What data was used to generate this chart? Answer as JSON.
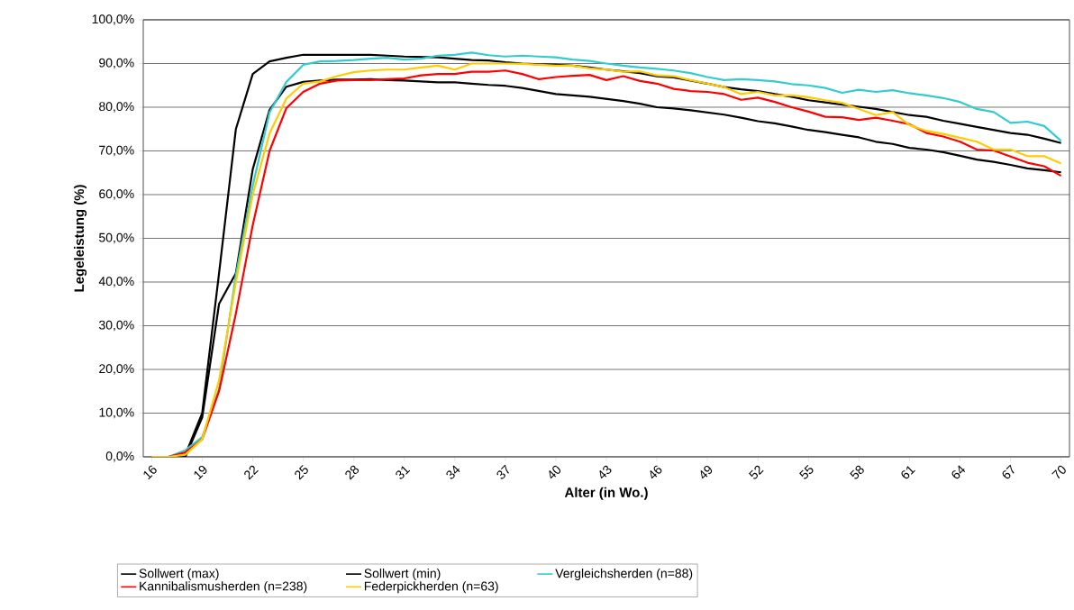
{
  "chart_data": {
    "type": "line",
    "xlabel": "Alter (in Wo.)",
    "ylabel": "Legeleistung (%)",
    "x": [
      16,
      17,
      18,
      19,
      20,
      21,
      22,
      23,
      24,
      25,
      26,
      27,
      28,
      29,
      30,
      31,
      32,
      33,
      34,
      35,
      36,
      37,
      38,
      39,
      40,
      41,
      42,
      43,
      44,
      45,
      46,
      47,
      48,
      49,
      50,
      51,
      52,
      53,
      54,
      55,
      56,
      57,
      58,
      59,
      60,
      61,
      62,
      63,
      64,
      65,
      66,
      67,
      68,
      69,
      70
    ],
    "xlim": [
      15.5,
      70.5
    ],
    "xticks": [
      16,
      19,
      22,
      25,
      28,
      31,
      34,
      37,
      40,
      43,
      46,
      49,
      52,
      55,
      58,
      61,
      64,
      67,
      70
    ],
    "ylim": [
      0,
      100
    ],
    "yticks": [
      {
        "value": 0,
        "label": "0,0%"
      },
      {
        "value": 10,
        "label": "10,0%"
      },
      {
        "value": 20,
        "label": "20,0%"
      },
      {
        "value": 30,
        "label": "30,0%"
      },
      {
        "value": 40,
        "label": "40,0%"
      },
      {
        "value": 50,
        "label": "50,0%"
      },
      {
        "value": 60,
        "label": "60,0%"
      },
      {
        "value": 70,
        "label": "70,0%"
      },
      {
        "value": 80,
        "label": "80,0%"
      },
      {
        "value": 90,
        "label": "90,0%"
      },
      {
        "value": 100,
        "label": "100,0%"
      }
    ],
    "grid": "y",
    "legend": "bottom",
    "marker": "none",
    "line_style": "solid",
    "series": [
      {
        "name": "Sollwert (max)",
        "color": "#000000",
        "values": [
          0,
          0,
          0.5,
          10,
          42,
          75,
          87.6,
          90.5,
          91.3,
          92,
          92,
          92,
          92,
          92,
          91.8,
          91.6,
          91.5,
          91.4,
          91.1,
          90.8,
          90.7,
          90.3,
          90,
          89.8,
          89.7,
          89.5,
          89.1,
          88.6,
          88.2,
          87.8,
          87.1,
          86.8,
          86.1,
          85.4,
          84.6,
          84.1,
          83.7,
          83,
          82.4,
          81.6,
          81.1,
          80.6,
          80.1,
          79.6,
          78.9,
          78.2,
          77.8,
          76.9,
          76.2,
          75.5,
          74.8,
          74.1,
          73.7,
          72.8,
          71.8
        ]
      },
      {
        "name": "Sollwert (min)",
        "color": "#000000",
        "values": [
          0,
          0,
          0,
          9,
          35,
          42,
          65.8,
          79.4,
          84.7,
          85.8,
          86.1,
          86.3,
          86.3,
          86.4,
          86.2,
          86.1,
          85.9,
          85.7,
          85.7,
          85.4,
          85.1,
          84.9,
          84.4,
          83.7,
          83,
          82.7,
          82.4,
          81.9,
          81.4,
          80.8,
          80,
          79.7,
          79.3,
          78.8,
          78.3,
          77.6,
          76.8,
          76.3,
          75.6,
          74.8,
          74.3,
          73.7,
          73.1,
          72.1,
          71.6,
          70.7,
          70.3,
          69.7,
          68.9,
          68,
          67.5,
          66.8,
          66,
          65.6,
          65.1
        ]
      },
      {
        "name": "Vergleichsherden (n=88)",
        "color": "#33cccc",
        "values": [
          0,
          0,
          1.5,
          4.5,
          15.5,
          41.6,
          62,
          78.8,
          85.8,
          89.7,
          90.5,
          90.6,
          90.8,
          91.1,
          91.3,
          90.9,
          91.1,
          91.8,
          92,
          92.5,
          91.9,
          91.6,
          91.8,
          91.6,
          91.4,
          90.9,
          90.6,
          90,
          89.5,
          89.1,
          88.8,
          88.4,
          87.8,
          86.9,
          86.2,
          86.4,
          86.2,
          85.9,
          85.3,
          85,
          84.4,
          83.3,
          84,
          83.5,
          83.9,
          83.2,
          82.7,
          82.1,
          81.2,
          79.6,
          78.9,
          76.4,
          76.7,
          75.7,
          72.3
        ]
      },
      {
        "name": "Kannibalismusherden (n=238)",
        "color": "#ff0000",
        "values": [
          0,
          0,
          1,
          4,
          15,
          32.8,
          53,
          70,
          79.8,
          83.5,
          85.4,
          86.1,
          86.2,
          86.2,
          86.4,
          86.6,
          87.3,
          87.6,
          87.6,
          88.1,
          88.1,
          88.4,
          87.6,
          86.4,
          86.9,
          87.2,
          87.4,
          86.2,
          87.1,
          86,
          85.4,
          84.2,
          83.7,
          83.5,
          83,
          81.7,
          82.2,
          81.2,
          80,
          79,
          77.8,
          77.7,
          77.1,
          77.6,
          76.9,
          76.1,
          74.1,
          73.3,
          72.1,
          70.3,
          70.1,
          68.7,
          67.3,
          66.5,
          64.3
        ]
      },
      {
        "name": "Federpickherden (n=63)",
        "color": "#ffcc00",
        "values": [
          0,
          0,
          0.5,
          4,
          17.5,
          40,
          60,
          74,
          82,
          85.4,
          85.9,
          87.1,
          88,
          88.4,
          88.6,
          88.6,
          89.1,
          89.5,
          88.6,
          90,
          90,
          90,
          89.9,
          89.7,
          89.5,
          89.5,
          88.9,
          88.6,
          88.1,
          88.2,
          87.3,
          87.1,
          86.2,
          85.4,
          84.6,
          83,
          83.5,
          82.7,
          82.7,
          82.3,
          81.6,
          81,
          79.6,
          78.2,
          78.9,
          75.9,
          74.6,
          73.9,
          73,
          72.1,
          70.3,
          70.3,
          68.8,
          68.8,
          67.1
        ]
      }
    ]
  }
}
